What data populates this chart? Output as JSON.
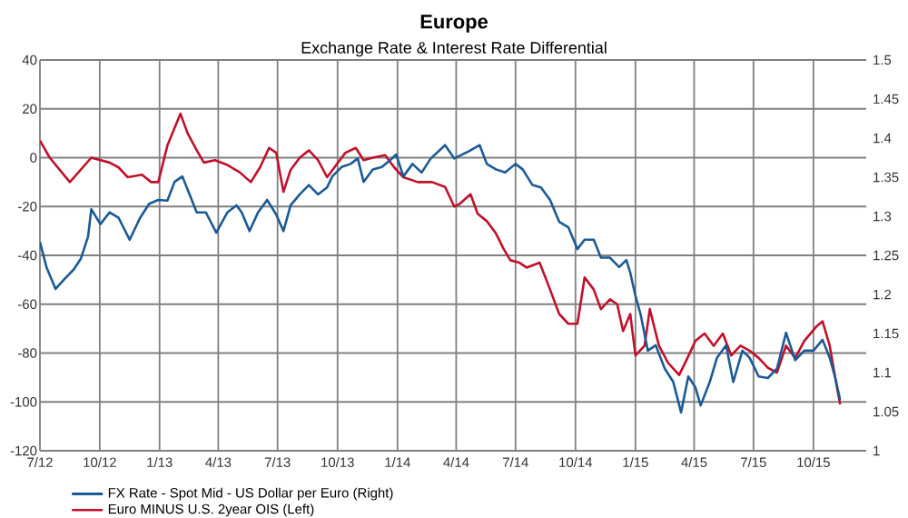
{
  "chart_data": {
    "type": "line",
    "title": "Europe",
    "subtitle": "Exchange Rate & Interest Rate Differential",
    "xlim": [
      "2012-07-01",
      "2015-12-21"
    ],
    "xticks": [
      {
        "value": "2012-07-01",
        "label": "7/12"
      },
      {
        "value": "2012-10-01",
        "label": "10/12"
      },
      {
        "value": "2013-01-01",
        "label": "1/13"
      },
      {
        "value": "2013-04-01",
        "label": "4/13"
      },
      {
        "value": "2013-07-01",
        "label": "7/13"
      },
      {
        "value": "2013-10-01",
        "label": "10/13"
      },
      {
        "value": "2014-01-01",
        "label": "1/14"
      },
      {
        "value": "2014-04-01",
        "label": "4/14"
      },
      {
        "value": "2014-07-01",
        "label": "7/14"
      },
      {
        "value": "2014-10-01",
        "label": "10/14"
      },
      {
        "value": "2015-01-01",
        "label": "1/15"
      },
      {
        "value": "2015-04-01",
        "label": "4/15"
      },
      {
        "value": "2015-07-01",
        "label": "7/15"
      },
      {
        "value": "2015-10-01",
        "label": "10/15"
      }
    ],
    "ylim": [
      -120,
      40
    ],
    "yticks": [
      -120,
      -100,
      -80,
      -60,
      -40,
      -20,
      0,
      20,
      40
    ],
    "y2lim": [
      1,
      1.5
    ],
    "y2ticks": [
      1,
      1.05,
      1.1,
      1.15,
      1.2,
      1.25,
      1.3,
      1.35,
      1.4,
      1.45,
      1.5
    ],
    "grid": true,
    "legend": "bottom",
    "series": [
      {
        "name": "FX Rate - Spot Mid - US Dollar per Euro  (Right)",
        "color": "#1a5a96",
        "axis": "y2",
        "x": [
          "2012-07-01",
          "2012-07-11",
          "2012-07-25",
          "2012-08-08",
          "2012-08-22",
          "2012-09-02",
          "2012-09-13",
          "2012-09-18",
          "2012-10-02",
          "2012-10-16",
          "2012-10-30",
          "2012-11-16",
          "2012-12-02",
          "2012-12-16",
          "2012-12-30",
          "2013-01-13",
          "2013-01-24",
          "2013-02-05",
          "2013-02-16",
          "2013-02-27",
          "2013-03-13",
          "2013-03-29",
          "2013-04-15",
          "2013-04-29",
          "2013-05-07",
          "2013-05-19",
          "2013-06-01",
          "2013-06-15",
          "2013-06-29",
          "2013-07-10",
          "2013-07-21",
          "2013-08-04",
          "2013-08-18",
          "2013-09-01",
          "2013-09-15",
          "2013-09-23",
          "2013-10-07",
          "2013-10-21",
          "2013-11-01",
          "2013-11-10",
          "2013-11-24",
          "2013-12-08",
          "2013-12-21",
          "2013-12-30",
          "2014-01-10",
          "2014-01-24",
          "2014-02-07",
          "2014-02-21",
          "2014-03-15",
          "2014-03-29",
          "2014-04-20",
          "2014-05-07",
          "2014-05-18",
          "2014-06-01",
          "2014-06-15",
          "2014-07-01",
          "2014-07-12",
          "2014-07-27",
          "2014-08-09",
          "2014-08-23",
          "2014-09-06",
          "2014-09-20",
          "2014-10-04",
          "2014-10-15",
          "2014-10-29",
          "2014-11-09",
          "2014-11-23",
          "2014-12-07",
          "2014-12-18",
          "2014-12-24",
          "2015-01-01",
          "2015-01-09",
          "2015-01-20",
          "2015-02-01",
          "2015-02-15",
          "2015-02-28",
          "2015-03-12",
          "2015-03-23",
          "2015-04-03",
          "2015-04-11",
          "2015-04-25",
          "2015-05-06",
          "2015-05-20",
          "2015-05-31",
          "2015-06-14",
          "2015-06-25",
          "2015-07-09",
          "2015-07-23",
          "2015-08-06",
          "2015-08-20",
          "2015-09-03",
          "2015-09-17",
          "2015-10-01",
          "2015-10-15",
          "2015-10-26",
          "2015-11-03",
          "2015-11-11"
        ],
        "values": [
          1.267,
          1.235,
          1.207,
          1.22,
          1.232,
          1.246,
          1.274,
          1.309,
          1.29,
          1.305,
          1.298,
          1.27,
          1.298,
          1.316,
          1.321,
          1.32,
          1.344,
          1.351,
          1.328,
          1.305,
          1.305,
          1.279,
          1.305,
          1.314,
          1.305,
          1.281,
          1.305,
          1.321,
          1.302,
          1.281,
          1.314,
          1.328,
          1.34,
          1.328,
          1.337,
          1.351,
          1.363,
          1.367,
          1.374,
          1.344,
          1.36,
          1.363,
          1.372,
          1.379,
          1.351,
          1.367,
          1.356,
          1.374,
          1.391,
          1.374,
          1.383,
          1.391,
          1.367,
          1.36,
          1.356,
          1.367,
          1.36,
          1.34,
          1.337,
          1.321,
          1.293,
          1.286,
          1.258,
          1.27,
          1.27,
          1.247,
          1.247,
          1.235,
          1.244,
          1.228,
          1.198,
          1.174,
          1.128,
          1.135,
          1.105,
          1.088,
          1.049,
          1.095,
          1.081,
          1.058,
          1.088,
          1.119,
          1.135,
          1.088,
          1.128,
          1.119,
          1.095,
          1.093,
          1.105,
          1.151,
          1.116,
          1.128,
          1.128,
          1.142,
          1.119,
          1.095,
          1.065
        ]
      },
      {
        "name": "Euro MINUS U.S. 2year OIS  (Left)",
        "color": "#c0102a",
        "axis": "y",
        "x": [
          "2012-07-01",
          "2012-07-16",
          "2012-08-16",
          "2012-09-18",
          "2012-10-16",
          "2012-10-30",
          "2012-11-13",
          "2012-12-05",
          "2012-12-19",
          "2012-12-30",
          "2013-01-13",
          "2013-02-02",
          "2013-02-13",
          "2013-02-27",
          "2013-03-10",
          "2013-03-27",
          "2013-04-15",
          "2013-05-04",
          "2013-05-21",
          "2013-06-04",
          "2013-06-18",
          "2013-06-29",
          "2013-07-10",
          "2013-07-21",
          "2013-08-04",
          "2013-08-18",
          "2013-09-01",
          "2013-09-15",
          "2013-09-29",
          "2013-10-13",
          "2013-10-29",
          "2013-11-10",
          "2013-11-24",
          "2013-12-13",
          "2013-12-27",
          "2014-01-10",
          "2014-02-01",
          "2014-02-23",
          "2014-03-15",
          "2014-03-29",
          "2014-04-06",
          "2014-04-23",
          "2014-05-04",
          "2014-05-18",
          "2014-06-01",
          "2014-06-12",
          "2014-06-23",
          "2014-07-07",
          "2014-07-18",
          "2014-08-07",
          "2014-08-23",
          "2014-09-06",
          "2014-09-20",
          "2014-10-04",
          "2014-10-15",
          "2014-10-29",
          "2014-11-09",
          "2014-11-23",
          "2014-12-04",
          "2014-12-13",
          "2014-12-24",
          "2015-01-01",
          "2015-01-15",
          "2015-01-23",
          "2015-02-06",
          "2015-02-20",
          "2015-03-09",
          "2015-03-20",
          "2015-04-03",
          "2015-04-17",
          "2015-05-01",
          "2015-05-15",
          "2015-05-28",
          "2015-06-11",
          "2015-06-25",
          "2015-07-09",
          "2015-07-23",
          "2015-08-06",
          "2015-08-20",
          "2015-09-03",
          "2015-09-17",
          "2015-10-06",
          "2015-10-15",
          "2015-10-26",
          "2015-11-06",
          "2015-11-11"
        ],
        "values": [
          7,
          0,
          -10,
          0,
          -2,
          -4,
          -8,
          -7,
          -10,
          -10,
          5,
          18,
          10,
          3,
          -2,
          -1,
          -3,
          -6,
          -10,
          -4,
          4,
          2,
          -14,
          -5,
          0,
          3,
          -1,
          -8,
          -3,
          2,
          4,
          -1,
          0,
          1,
          -4,
          -8,
          -10,
          -10,
          -12,
          -20,
          -19,
          -15,
          -23,
          -26,
          -31,
          -37,
          -42,
          -43,
          -45,
          -43,
          -54,
          -64,
          -68,
          -68,
          -49,
          -54,
          -62,
          -58,
          -60,
          -71,
          -64,
          -81,
          -77,
          -62,
          -77,
          -84,
          -89,
          -83,
          -75,
          -72,
          -77,
          -72,
          -81,
          -77,
          -79,
          -82,
          -86,
          -88,
          -77,
          -82,
          -75,
          -69,
          -67,
          -77,
          -94,
          -101
        ]
      }
    ]
  }
}
